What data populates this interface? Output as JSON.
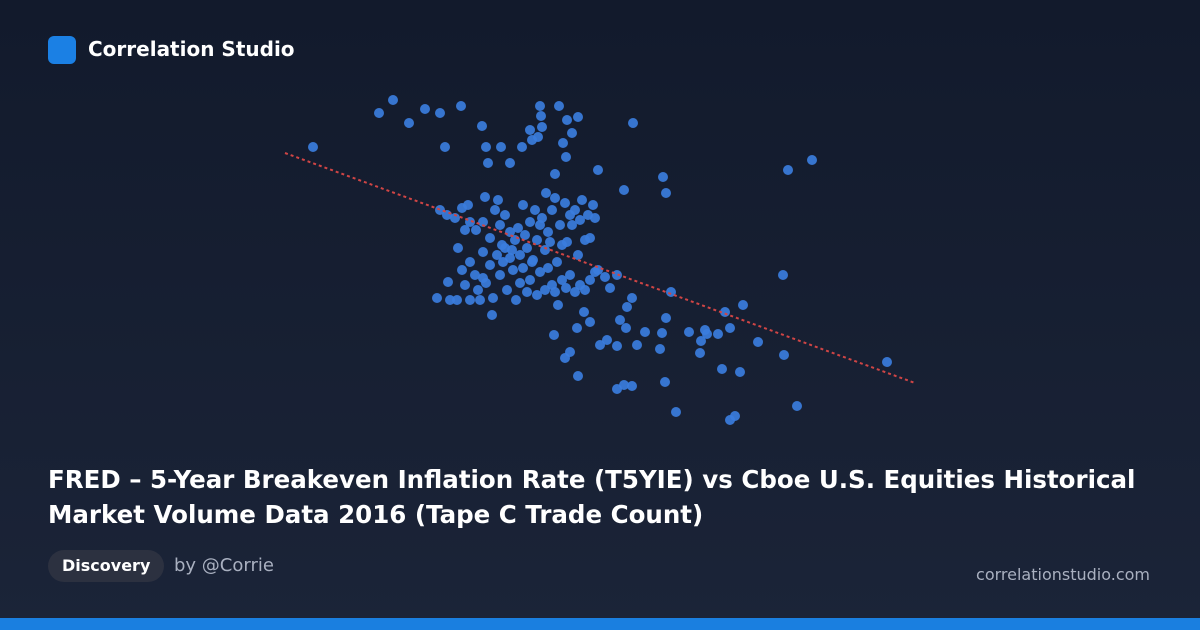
{
  "brand": "Correlation Studio",
  "title": "FRED – 5-Year Breakeven Inflation Rate (T5YIE) vs Cboe U.S. Equities Historical Market Volume Data 2016 (Tape C Trade Count)",
  "tag": "Discovery",
  "author": "by @Corrie",
  "site": "correlationstudio.com",
  "chart_data": {
    "type": "scatter",
    "color": "#3b7ddd",
    "xlim": [
      0,
      640
    ],
    "ylim": [
      0,
      340
    ],
    "x": [
      33,
      99,
      113,
      129,
      145,
      160,
      165,
      181,
      202,
      206,
      208,
      221,
      230,
      242,
      250,
      252,
      260,
      261,
      262,
      258,
      279,
      287,
      298,
      292,
      283,
      286,
      275,
      318,
      353,
      344,
      383,
      386,
      508,
      532,
      160,
      167,
      175,
      182,
      188,
      190,
      196,
      203,
      205,
      210,
      215,
      218,
      220,
      222,
      225,
      230,
      232,
      235,
      238,
      240,
      243,
      245,
      247,
      250,
      252,
      255,
      257,
      260,
      262,
      265,
      266,
      268,
      270,
      272,
      275,
      277,
      280,
      282,
      285,
      287,
      290,
      292,
      295,
      298,
      300,
      302,
      305,
      308,
      310,
      313,
      315,
      190,
      195,
      198,
      203,
      206,
      210,
      213,
      217,
      220,
      223,
      227,
      230,
      233,
      236,
      240,
      243,
      247,
      250,
      253,
      257,
      260,
      265,
      268,
      272,
      275,
      278,
      282,
      286,
      290,
      295,
      300,
      305,
      310,
      315,
      318,
      325,
      330,
      337,
      182,
      185,
      190,
      177,
      168,
      157,
      170,
      200,
      212,
      203,
      225,
      178,
      185,
      274,
      285,
      290,
      298,
      297,
      304,
      310,
      320,
      327,
      337,
      340,
      346,
      347,
      352,
      357,
      365,
      380,
      382,
      386,
      391,
      409,
      421,
      420,
      425,
      427,
      438,
      445,
      450,
      463,
      478,
      504,
      503,
      442,
      460,
      385,
      337,
      344,
      352,
      396,
      450,
      455,
      517,
      607
    ],
    "y": [
      283,
      317,
      330,
      307,
      321,
      317,
      283,
      324,
      304,
      283,
      267,
      283,
      267,
      283,
      300,
      290,
      324,
      314,
      303,
      293,
      324,
      310,
      313,
      297,
      287,
      273,
      256,
      260,
      307,
      240,
      253,
      237,
      260,
      270,
      220,
      215,
      212,
      222,
      225,
      208,
      200,
      208,
      233,
      192,
      220,
      230,
      205,
      185,
      215,
      198,
      180,
      190,
      202,
      175,
      225,
      195,
      182,
      208,
      168,
      220,
      190,
      205,
      212,
      180,
      237,
      198,
      188,
      220,
      232,
      168,
      205,
      185,
      227,
      188,
      215,
      205,
      220,
      175,
      210,
      230,
      190,
      215,
      192,
      225,
      212,
      168,
      155,
      140,
      178,
      147,
      165,
      132,
      175,
      155,
      168,
      140,
      172,
      160,
      130,
      147,
      162,
      138,
      150,
      170,
      135,
      158,
      140,
      162,
      145,
      138,
      125,
      150,
      142,
      155,
      138,
      145,
      140,
      150,
      158,
      160,
      153,
      142,
      155,
      160,
      145,
      130,
      130,
      148,
      132,
      130,
      130,
      115,
      152,
      182,
      182,
      200,
      95,
      72,
      78,
      54,
      102,
      118,
      108,
      85,
      90,
      84,
      110,
      102,
      123,
      132,
      85,
      98,
      81,
      97,
      112,
      138,
      98,
      89,
      77,
      100,
      96,
      96,
      118,
      102,
      125,
      88,
      75,
      155,
      61,
      58,
      48,
      41,
      45,
      44,
      18,
      10,
      14,
      24,
      68
    ],
    "trendline": {
      "color": "#d04545",
      "x": [
        5,
        635
      ],
      "y": [
        277,
        47
      ]
    }
  }
}
